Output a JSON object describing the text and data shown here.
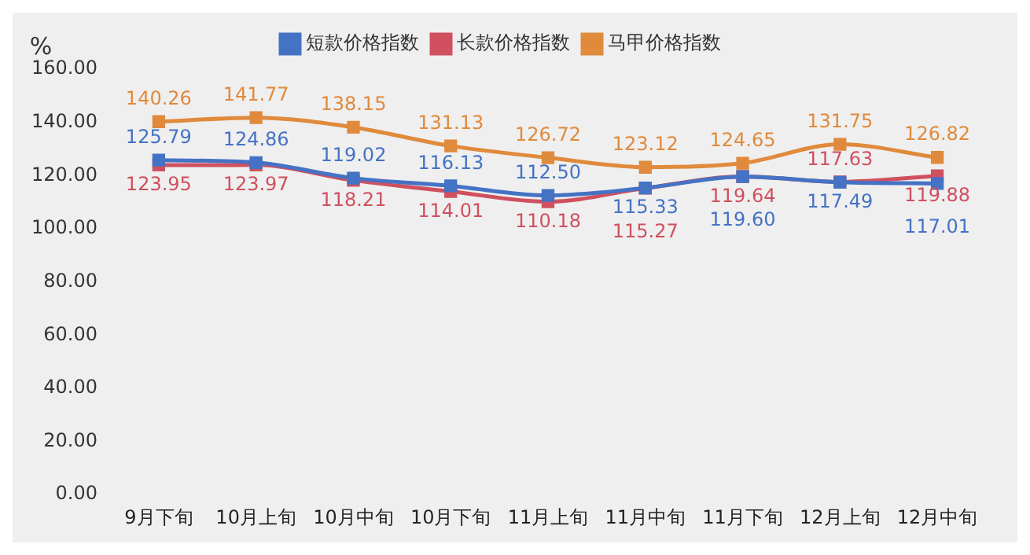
{
  "chart_data": {
    "type": "line",
    "ylabel": "%",
    "categories": [
      "9月下旬",
      "10月上旬",
      "10月中旬",
      "10月下旬",
      "11月上旬",
      "11月中旬",
      "11月下旬",
      "12月上旬",
      "12月中旬"
    ],
    "series": [
      {
        "name": "短款价格指数",
        "color": "#4472c4",
        "values": [
          125.79,
          124.86,
          119.02,
          116.13,
          112.5,
          115.33,
          119.6,
          117.49,
          117.01
        ],
        "value_labels": [
          "125.79",
          "124.86",
          "119.02",
          "116.13",
          "112.50",
          "115.33",
          "119.60",
          "117.49",
          "117.01"
        ]
      },
      {
        "name": "长款价格指数",
        "color": "#d0505f",
        "values": [
          123.95,
          123.97,
          118.21,
          114.01,
          110.18,
          115.27,
          119.64,
          117.63,
          119.88
        ],
        "value_labels": [
          "123.95",
          "123.97",
          "118.21",
          "114.01",
          "110.18",
          "115.27",
          "119.64",
          "117.63",
          "119.88"
        ]
      },
      {
        "name": "马甲价格指数",
        "color": "#e08a3c",
        "values": [
          140.26,
          141.77,
          138.15,
          131.13,
          126.72,
          123.12,
          124.65,
          131.75,
          126.82
        ],
        "value_labels": [
          "140.26",
          "141.77",
          "138.15",
          "131.13",
          "126.72",
          "123.12",
          "124.65",
          "131.75",
          "126.82"
        ]
      }
    ],
    "ylim": [
      0,
      160
    ],
    "yticks": [
      {
        "value": 0,
        "label": "0.00"
      },
      {
        "value": 20,
        "label": "20.00"
      },
      {
        "value": 40,
        "label": "40.00"
      },
      {
        "value": 60,
        "label": "60.00"
      },
      {
        "value": 80,
        "label": "80.00"
      },
      {
        "value": 100,
        "label": "100.00"
      },
      {
        "value": 120,
        "label": "120.00"
      },
      {
        "value": 140,
        "label": "140.00"
      },
      {
        "value": 160,
        "label": "160.00"
      }
    ],
    "grid": false,
    "legend": "top",
    "marker": "square",
    "line_style": "solid"
  }
}
